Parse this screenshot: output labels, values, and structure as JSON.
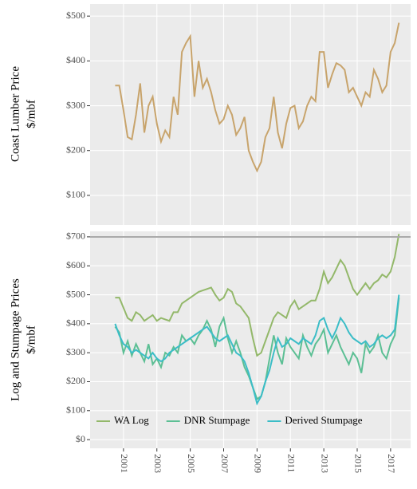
{
  "chart_data": [
    {
      "type": "line",
      "ylabel": [
        "Coast Lumber Price",
        "$/mbf"
      ],
      "xlim": [
        1999,
        2018.2
      ],
      "xticks": [
        2001,
        2003,
        2005,
        2007,
        2009,
        2011,
        2013,
        2015,
        2017
      ],
      "ylim": [
        34,
        527
      ],
      "yticks": [
        {
          "value": 100,
          "label": "$100"
        },
        {
          "value": 200,
          "label": "$200"
        },
        {
          "value": 300,
          "label": "$300"
        },
        {
          "value": 400,
          "label": "$400"
        },
        {
          "value": 500,
          "label": "$500"
        }
      ],
      "grid": true,
      "x": [
        2000.5,
        2000.75,
        2001,
        2001.25,
        2001.5,
        2001.75,
        2002,
        2002.25,
        2002.5,
        2002.75,
        2003,
        2003.25,
        2003.5,
        2003.75,
        2004,
        2004.25,
        2004.5,
        2004.75,
        2005,
        2005.25,
        2005.5,
        2005.75,
        2006,
        2006.25,
        2006.5,
        2006.75,
        2007,
        2007.25,
        2007.5,
        2007.75,
        2008,
        2008.25,
        2008.5,
        2008.75,
        2009,
        2009.25,
        2009.5,
        2009.75,
        2010,
        2010.25,
        2010.5,
        2010.75,
        2011,
        2011.25,
        2011.5,
        2011.75,
        2012,
        2012.25,
        2012.5,
        2012.75,
        2013,
        2013.25,
        2013.5,
        2013.75,
        2014,
        2014.25,
        2014.5,
        2014.75,
        2015,
        2015.25,
        2015.5,
        2015.75,
        2016,
        2016.25,
        2016.5,
        2016.75,
        2017,
        2017.25,
        2017.5
      ],
      "series": [
        {
          "color": "#c8a46c",
          "values": [
            345,
            345,
            290,
            230,
            225,
            280,
            350,
            240,
            300,
            320,
            260,
            220,
            245,
            230,
            320,
            280,
            420,
            440,
            455,
            320,
            400,
            340,
            360,
            330,
            290,
            260,
            270,
            300,
            280,
            235,
            250,
            275,
            200,
            175,
            155,
            175,
            230,
            250,
            320,
            240,
            205,
            260,
            295,
            300,
            250,
            265,
            300,
            320,
            310,
            420,
            420,
            340,
            370,
            395,
            390,
            380,
            330,
            340,
            320,
            300,
            330,
            320,
            380,
            360,
            330,
            345,
            420,
            440,
            485
          ]
        }
      ]
    },
    {
      "type": "line",
      "ylabel": [
        "Log and Stumpage Prices",
        "$/mbf"
      ],
      "xlim": [
        1999,
        2018.2
      ],
      "xticks": [
        2001,
        2003,
        2005,
        2007,
        2009,
        2011,
        2013,
        2015,
        2017
      ],
      "ylim": [
        -30,
        719
      ],
      "yticks": [
        {
          "value": 0,
          "label": "$0"
        },
        {
          "value": 100,
          "label": "$100"
        },
        {
          "value": 200,
          "label": "$200"
        },
        {
          "value": 300,
          "label": "$300"
        },
        {
          "value": 400,
          "label": "$400"
        },
        {
          "value": 500,
          "label": "$500"
        },
        {
          "value": 600,
          "label": "$600"
        },
        {
          "value": 700,
          "label": "$700"
        }
      ],
      "grid": true,
      "legend": "bottom",
      "x": [
        2000.5,
        2000.75,
        2001,
        2001.25,
        2001.5,
        2001.75,
        2002,
        2002.25,
        2002.5,
        2002.75,
        2003,
        2003.25,
        2003.5,
        2003.75,
        2004,
        2004.25,
        2004.5,
        2004.75,
        2005,
        2005.25,
        2005.5,
        2005.75,
        2006,
        2006.25,
        2006.5,
        2006.75,
        2007,
        2007.25,
        2007.5,
        2007.75,
        2008,
        2008.25,
        2008.5,
        2008.75,
        2009,
        2009.25,
        2009.5,
        2009.75,
        2010,
        2010.25,
        2010.5,
        2010.75,
        2011,
        2011.25,
        2011.5,
        2011.75,
        2012,
        2012.25,
        2012.5,
        2012.75,
        2013,
        2013.25,
        2013.5,
        2013.75,
        2014,
        2014.25,
        2014.5,
        2014.75,
        2015,
        2015.25,
        2015.5,
        2015.75,
        2016,
        2016.25,
        2016.5,
        2016.75,
        2017,
        2017.25,
        2017.5
      ],
      "series": [
        {
          "name": "WA Log",
          "color": "#93b86a",
          "values": [
            490,
            490,
            455,
            420,
            410,
            440,
            430,
            410,
            420,
            430,
            410,
            420,
            415,
            410,
            440,
            440,
            470,
            480,
            490,
            500,
            510,
            515,
            520,
            525,
            500,
            480,
            490,
            520,
            510,
            470,
            460,
            440,
            420,
            350,
            290,
            300,
            340,
            380,
            420,
            440,
            430,
            420,
            460,
            480,
            450,
            460,
            470,
            480,
            480,
            520,
            580,
            540,
            560,
            590,
            620,
            600,
            560,
            520,
            500,
            520,
            540,
            520,
            540,
            550,
            570,
            560,
            580,
            630,
            710
          ]
        },
        {
          "name": "DNR Stumpage",
          "color": "#5cbf94",
          "values": [
            390,
            370,
            300,
            340,
            290,
            330,
            300,
            270,
            330,
            260,
            280,
            250,
            300,
            290,
            320,
            300,
            360,
            340,
            350,
            330,
            360,
            380,
            410,
            380,
            320,
            390,
            420,
            350,
            300,
            340,
            300,
            250,
            220,
            180,
            140,
            150,
            200,
            280,
            360,
            300,
            260,
            350,
            320,
            300,
            280,
            360,
            320,
            290,
            330,
            350,
            380,
            300,
            330,
            360,
            320,
            290,
            260,
            300,
            280,
            230,
            330,
            300,
            320,
            360,
            300,
            280,
            330,
            360,
            490
          ]
        },
        {
          "name": "Derived Stumpage",
          "color": "#3bbdc7",
          "values": [
            400,
            360,
            330,
            320,
            300,
            310,
            300,
            290,
            280,
            300,
            280,
            270,
            280,
            300,
            310,
            320,
            330,
            340,
            350,
            360,
            370,
            380,
            390,
            370,
            350,
            340,
            350,
            360,
            330,
            300,
            290,
            270,
            230,
            180,
            125,
            150,
            200,
            240,
            300,
            350,
            320,
            330,
            350,
            340,
            330,
            350,
            340,
            330,
            360,
            410,
            420,
            380,
            350,
            380,
            420,
            400,
            370,
            350,
            340,
            330,
            340,
            320,
            330,
            350,
            360,
            350,
            360,
            380,
            500
          ]
        }
      ]
    }
  ]
}
